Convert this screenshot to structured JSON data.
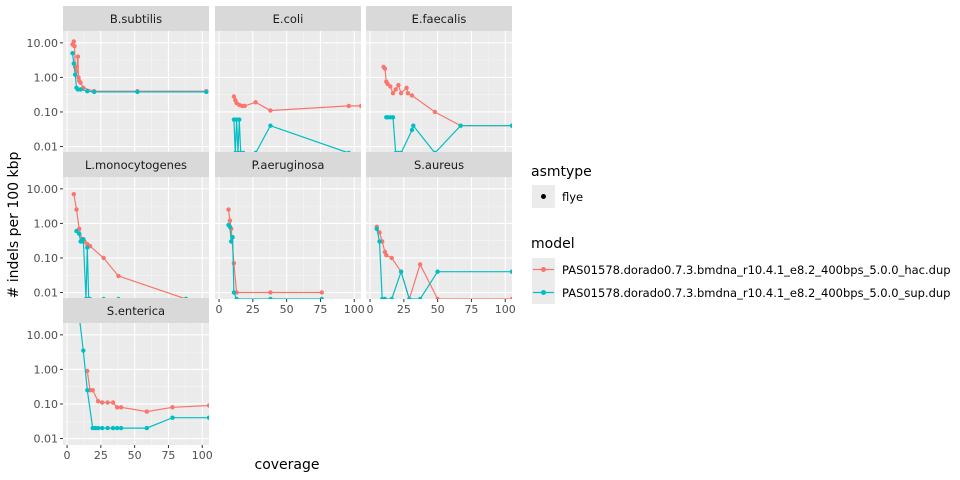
{
  "chart_data": {
    "type": "line",
    "xlabel": "coverage",
    "ylabel": "# indels per 100 kbp",
    "y_scale": "log10",
    "xlim": [
      -3,
      105
    ],
    "ylim": [
      0.0065,
      22
    ],
    "x_ticks": [
      0,
      25,
      50,
      75,
      100
    ],
    "x_tick_labels": [
      "0",
      "25",
      "50",
      "75",
      "100"
    ],
    "y_ticks": [
      0.01,
      0.1,
      1,
      10
    ],
    "y_tick_labels": [
      "0.01",
      "0.10",
      "1.00",
      "10.00"
    ],
    "facets": [
      "B.subtilis",
      "E.coli",
      "E.faecalis",
      "L.monocytogenes",
      "P.aeruginosa",
      "S.aureus",
      "S.enterica"
    ],
    "legend": {
      "asmtype_title": "asmtype",
      "asmtype_items": [
        "flye"
      ],
      "model_title": "model",
      "model_items": [
        "PAS01578.dorado0.7.3.bmdna_r10.4.1_e8.2_400bps_5.0.0_hac.dup",
        "PAS01578.dorado0.7.3.bmdna_r10.4.1_e8.2_400bps_5.0.0_sup.dup"
      ]
    },
    "series": [
      {
        "name": "PAS01578.dorado0.7.3.bmdna_r10.4.1_e8.2_400bps_5.0.0_hac.dup",
        "color": "#F8766D",
        "panels": {
          "B.subtilis": [
            [
              4,
              9
            ],
            [
              5,
              11
            ],
            [
              5.5,
              8
            ],
            [
              6,
              2
            ],
            [
              7,
              1.5
            ],
            [
              8,
              4
            ],
            [
              8.5,
              1
            ],
            [
              9,
              0.8
            ],
            [
              10,
              0.7
            ],
            [
              12,
              0.5
            ],
            [
              20,
              0.4
            ],
            [
              52,
              0.4
            ],
            [
              103,
              0.4
            ]
          ],
          "E.coli": [
            [
              11,
              0.28
            ],
            [
              12,
              0.22
            ],
            [
              13,
              0.18
            ],
            [
              15,
              0.16
            ],
            [
              17,
              0.15
            ],
            [
              19,
              0.15
            ],
            [
              27,
              0.19
            ],
            [
              38,
              0.11
            ],
            [
              96,
              0.15
            ],
            [
              105,
              0.15
            ]
          ],
          "E.faecalis": [
            [
              10,
              2
            ],
            [
              11,
              1.8
            ],
            [
              12,
              0.75
            ],
            [
              13,
              0.65
            ],
            [
              15,
              0.55
            ],
            [
              17,
              0.35
            ],
            [
              19,
              0.45
            ],
            [
              21,
              0.6
            ],
            [
              23,
              0.35
            ],
            [
              27,
              0.5
            ],
            [
              28,
              0.35
            ],
            [
              31,
              0.3
            ],
            [
              48,
              0.1
            ],
            [
              67,
              0.04
            ],
            [
              105,
              0.04
            ]
          ],
          "L.monocytogenes": [
            [
              5,
              7
            ],
            [
              7,
              2.5
            ],
            [
              9,
              0.7
            ],
            [
              11,
              0.35
            ],
            [
              13,
              0.3
            ],
            [
              15,
              0.25
            ],
            [
              17,
              0.22
            ],
            [
              27,
              0.1
            ],
            [
              38,
              0.03
            ],
            [
              88,
              0.0065
            ]
          ],
          "P.aeruginosa": [
            [
              7,
              2.5
            ],
            [
              8,
              1.2
            ],
            [
              9,
              0.7
            ],
            [
              11,
              0.07
            ],
            [
              13,
              0.01
            ],
            [
              38,
              0.01
            ],
            [
              76,
              0.01
            ]
          ],
          "S.aureus": [
            [
              5,
              0.8
            ],
            [
              7,
              0.55
            ],
            [
              9,
              0.3
            ],
            [
              11,
              0.15
            ],
            [
              12,
              0.12
            ],
            [
              16,
              0.1
            ],
            [
              23,
              0.04
            ],
            [
              29,
              0.0065
            ],
            [
              37,
              0.065
            ],
            [
              50,
              0.0065
            ],
            [
              105,
              0.0065
            ]
          ],
          "S.enterica": [
            [
              15,
              0.9
            ],
            [
              17,
              0.25
            ],
            [
              19,
              0.25
            ],
            [
              23,
              0.12
            ],
            [
              26,
              0.11
            ],
            [
              30,
              0.11
            ],
            [
              34,
              0.11
            ],
            [
              37,
              0.08
            ],
            [
              40,
              0.08
            ],
            [
              59,
              0.06
            ],
            [
              78,
              0.08
            ],
            [
              105,
              0.09
            ]
          ]
        }
      },
      {
        "name": "PAS01578.dorado0.7.3.bmdna_r10.4.1_e8.2_400bps_5.0.0_sup.dup",
        "color": "#00BFC4",
        "panels": {
          "B.subtilis": [
            [
              4,
              5
            ],
            [
              5,
              2.5
            ],
            [
              6,
              1.2
            ],
            [
              7,
              0.5
            ],
            [
              8,
              0.45
            ],
            [
              10,
              0.45
            ],
            [
              15,
              0.4
            ],
            [
              20,
              0.38
            ],
            [
              52,
              0.38
            ],
            [
              103,
              0.38
            ]
          ],
          "E.coli": [
            [
              11,
              0.06
            ],
            [
              12,
              0.0065
            ],
            [
              13,
              0.06
            ],
            [
              14,
              0.0065
            ],
            [
              15,
              0.06
            ],
            [
              16,
              0.0065
            ],
            [
              18,
              0.0065
            ],
            [
              27,
              0.0065
            ],
            [
              38,
              0.04
            ],
            [
              96,
              0.0065
            ]
          ],
          "E.faecalis": [
            [
              12,
              0.07
            ],
            [
              13,
              0.07
            ],
            [
              15,
              0.07
            ],
            [
              17,
              0.07
            ],
            [
              19,
              0.0065
            ],
            [
              21,
              0.0065
            ],
            [
              23,
              0.0065
            ],
            [
              31,
              0.03
            ],
            [
              32,
              0.04
            ],
            [
              48,
              0.0065
            ],
            [
              67,
              0.04
            ],
            [
              105,
              0.04
            ]
          ],
          "L.monocytogenes": [
            [
              7,
              0.6
            ],
            [
              9,
              0.5
            ],
            [
              10,
              0.3
            ],
            [
              11,
              0.3
            ],
            [
              12,
              0.35
            ],
            [
              14,
              0.0065
            ],
            [
              15,
              0.2
            ],
            [
              16,
              0.0065
            ],
            [
              17,
              0.0065
            ],
            [
              27,
              0.0065
            ],
            [
              38,
              0.0065
            ],
            [
              88,
              0.0065
            ]
          ],
          "P.aeruginosa": [
            [
              7,
              0.9
            ],
            [
              8,
              0.8
            ],
            [
              9,
              0.3
            ],
            [
              10,
              0.4
            ],
            [
              11,
              0.01
            ],
            [
              13,
              0.0065
            ],
            [
              38,
              0.0065
            ],
            [
              76,
              0.0065
            ]
          ],
          "S.aureus": [
            [
              5,
              0.7
            ],
            [
              7,
              0.3
            ],
            [
              9,
              0.0065
            ],
            [
              11,
              0.0065
            ],
            [
              16,
              0.0065
            ],
            [
              23,
              0.04
            ],
            [
              29,
              0.0065
            ],
            [
              37,
              0.0065
            ],
            [
              50,
              0.04
            ],
            [
              105,
              0.04
            ]
          ],
          "S.enterica": [
            [
              9,
              35
            ],
            [
              12,
              3.5
            ],
            [
              15,
              0.25
            ],
            [
              19,
              0.02
            ],
            [
              21,
              0.02
            ],
            [
              23,
              0.02
            ],
            [
              26,
              0.02
            ],
            [
              30,
              0.02
            ],
            [
              34,
              0.02
            ],
            [
              37,
              0.02
            ],
            [
              40,
              0.02
            ],
            [
              59,
              0.02
            ],
            [
              78,
              0.04
            ],
            [
              105,
              0.04
            ]
          ]
        }
      }
    ]
  }
}
